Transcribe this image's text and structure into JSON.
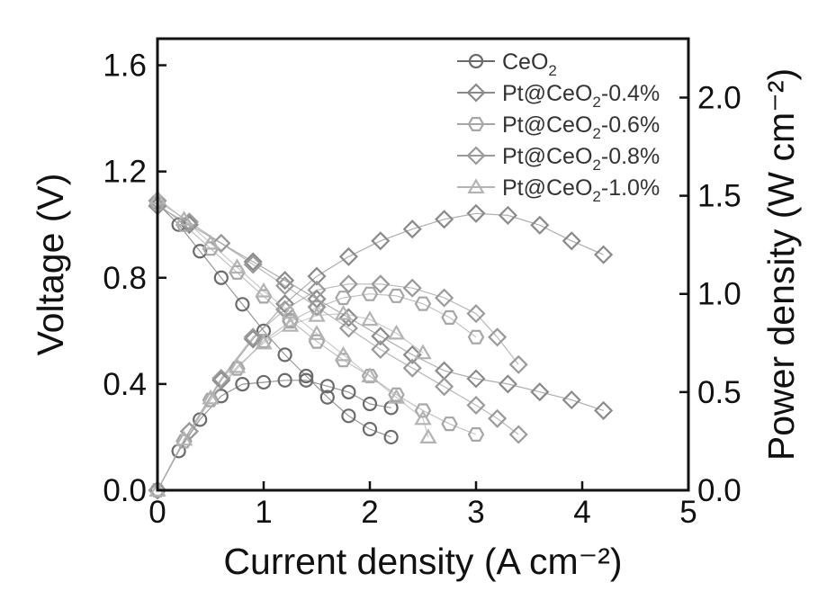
{
  "chart_data": {
    "type": "scatter",
    "xlabel": "Current density (A cm⁻²)",
    "ylabel": "Voltage (V)",
    "y2label": "Power density (W cm⁻²)",
    "xlim": [
      0,
      5
    ],
    "ylim": [
      0,
      1.7
    ],
    "y2lim": [
      0,
      2.3
    ],
    "x_ticks": [
      "0",
      "1",
      "2",
      "3",
      "4",
      "5"
    ],
    "y_ticks": [
      "0.0",
      "0.4",
      "0.8",
      "1.2",
      "1.6"
    ],
    "y2_ticks": [
      "0.0",
      "0.5",
      "1.0",
      "1.5",
      "2.0"
    ],
    "grid": false,
    "legend_position": "top-right",
    "series": [
      {
        "name": "CeO2",
        "name_parts": [
          "CeO",
          "2",
          ""
        ],
        "marker": "circle",
        "color": "#6a6a6a",
        "voltage": [
          [
            0.0,
            1.08
          ],
          [
            0.2,
            1.0
          ],
          [
            0.4,
            0.9
          ],
          [
            0.6,
            0.8
          ],
          [
            0.8,
            0.7
          ],
          [
            1.0,
            0.6
          ],
          [
            1.2,
            0.51
          ],
          [
            1.4,
            0.43
          ],
          [
            1.6,
            0.35
          ],
          [
            1.8,
            0.28
          ],
          [
            2.0,
            0.23
          ],
          [
            2.2,
            0.2
          ]
        ],
        "power": [
          [
            0.0,
            0.0
          ],
          [
            0.2,
            0.2
          ],
          [
            0.4,
            0.36
          ],
          [
            0.6,
            0.48
          ],
          [
            0.8,
            0.54
          ],
          [
            1.0,
            0.55
          ],
          [
            1.2,
            0.56
          ],
          [
            1.4,
            0.56
          ],
          [
            1.6,
            0.53
          ],
          [
            1.8,
            0.5
          ],
          [
            2.0,
            0.44
          ],
          [
            2.2,
            0.42
          ]
        ]
      },
      {
        "name": "Pt@CeO2-0.4%",
        "name_parts": [
          "Pt@CeO",
          "2",
          "-0.4%"
        ],
        "marker": "diamond",
        "color": "#8a8a8a",
        "voltage": [
          [
            0.0,
            1.07
          ],
          [
            0.3,
            1.0
          ],
          [
            0.6,
            0.93
          ],
          [
            0.9,
            0.86
          ],
          [
            1.2,
            0.79
          ],
          [
            1.5,
            0.72
          ],
          [
            1.8,
            0.65
          ],
          [
            2.1,
            0.58
          ],
          [
            2.4,
            0.51
          ],
          [
            2.7,
            0.45
          ],
          [
            3.0,
            0.42
          ],
          [
            3.3,
            0.4
          ],
          [
            3.6,
            0.37
          ],
          [
            3.9,
            0.34
          ],
          [
            4.2,
            0.3
          ]
        ],
        "power": [
          [
            0.0,
            0.0
          ],
          [
            0.3,
            0.3
          ],
          [
            0.6,
            0.56
          ],
          [
            0.9,
            0.77
          ],
          [
            1.2,
            0.95
          ],
          [
            1.5,
            1.09
          ],
          [
            1.8,
            1.19
          ],
          [
            2.1,
            1.27
          ],
          [
            2.4,
            1.33
          ],
          [
            2.7,
            1.38
          ],
          [
            3.0,
            1.41
          ],
          [
            3.3,
            1.4
          ],
          [
            3.6,
            1.35
          ],
          [
            3.9,
            1.27
          ],
          [
            4.2,
            1.2
          ]
        ]
      },
      {
        "name": "Pt@CeO2-0.6%",
        "name_parts": [
          "Pt@CeO",
          "2",
          "-0.6%"
        ],
        "marker": "hexagon",
        "color": "#a6a6a6",
        "voltage": [
          [
            0.0,
            1.08
          ],
          [
            0.25,
            1.0
          ],
          [
            0.5,
            0.91
          ],
          [
            0.75,
            0.82
          ],
          [
            1.0,
            0.73
          ],
          [
            1.25,
            0.64
          ],
          [
            1.5,
            0.56
          ],
          [
            1.75,
            0.49
          ],
          [
            2.0,
            0.43
          ],
          [
            2.25,
            0.36
          ],
          [
            2.5,
            0.3
          ],
          [
            2.75,
            0.25
          ],
          [
            3.0,
            0.21
          ]
        ],
        "power": [
          [
            0.0,
            0.0
          ],
          [
            0.25,
            0.25
          ],
          [
            0.5,
            0.46
          ],
          [
            0.75,
            0.62
          ],
          [
            1.0,
            0.76
          ],
          [
            1.25,
            0.86
          ],
          [
            1.5,
            0.93
          ],
          [
            1.75,
            0.98
          ],
          [
            2.0,
            1.0
          ],
          [
            2.25,
            0.99
          ],
          [
            2.5,
            0.95
          ],
          [
            2.75,
            0.88
          ],
          [
            3.0,
            0.78
          ]
        ]
      },
      {
        "name": "Pt@CeO2-0.8%",
        "name_parts": [
          "Pt@CeO",
          "2",
          "-0.8%"
        ],
        "marker": "diamond",
        "color": "#9a9a9a",
        "voltage": [
          [
            0.0,
            1.09
          ],
          [
            0.3,
            1.01
          ],
          [
            0.6,
            0.93
          ],
          [
            0.9,
            0.85
          ],
          [
            1.2,
            0.77
          ],
          [
            1.5,
            0.69
          ],
          [
            1.8,
            0.61
          ],
          [
            2.1,
            0.53
          ],
          [
            2.4,
            0.46
          ],
          [
            2.7,
            0.39
          ],
          [
            3.0,
            0.32
          ],
          [
            3.2,
            0.27
          ],
          [
            3.4,
            0.21
          ]
        ],
        "power": [
          [
            0.0,
            0.0
          ],
          [
            0.3,
            0.3
          ],
          [
            0.6,
            0.57
          ],
          [
            0.9,
            0.78
          ],
          [
            1.2,
            0.92
          ],
          [
            1.5,
            1.02
          ],
          [
            1.8,
            1.05
          ],
          [
            2.1,
            1.05
          ],
          [
            2.4,
            1.03
          ],
          [
            2.7,
            0.98
          ],
          [
            3.0,
            0.9
          ],
          [
            3.2,
            0.78
          ],
          [
            3.4,
            0.64
          ]
        ]
      },
      {
        "name": "Pt@CeO2-1.0%",
        "name_parts": [
          "Pt@CeO",
          "2",
          "-1.0%"
        ],
        "marker": "triangle",
        "color": "#b3b3b3",
        "voltage": [
          [
            0.0,
            1.1
          ],
          [
            0.25,
            1.02
          ],
          [
            0.5,
            0.93
          ],
          [
            0.75,
            0.84
          ],
          [
            1.0,
            0.75
          ],
          [
            1.25,
            0.67
          ],
          [
            1.5,
            0.59
          ],
          [
            1.75,
            0.51
          ],
          [
            2.0,
            0.43
          ],
          [
            2.25,
            0.35
          ],
          [
            2.5,
            0.27
          ],
          [
            2.55,
            0.2
          ]
        ],
        "power": [
          [
            0.0,
            0.0
          ],
          [
            0.25,
            0.26
          ],
          [
            0.5,
            0.47
          ],
          [
            0.75,
            0.63
          ],
          [
            1.0,
            0.75
          ],
          [
            1.25,
            0.84
          ],
          [
            1.5,
            0.89
          ],
          [
            1.75,
            0.9
          ],
          [
            2.0,
            0.87
          ],
          [
            2.25,
            0.8
          ],
          [
            2.5,
            0.7
          ]
        ]
      }
    ]
  }
}
